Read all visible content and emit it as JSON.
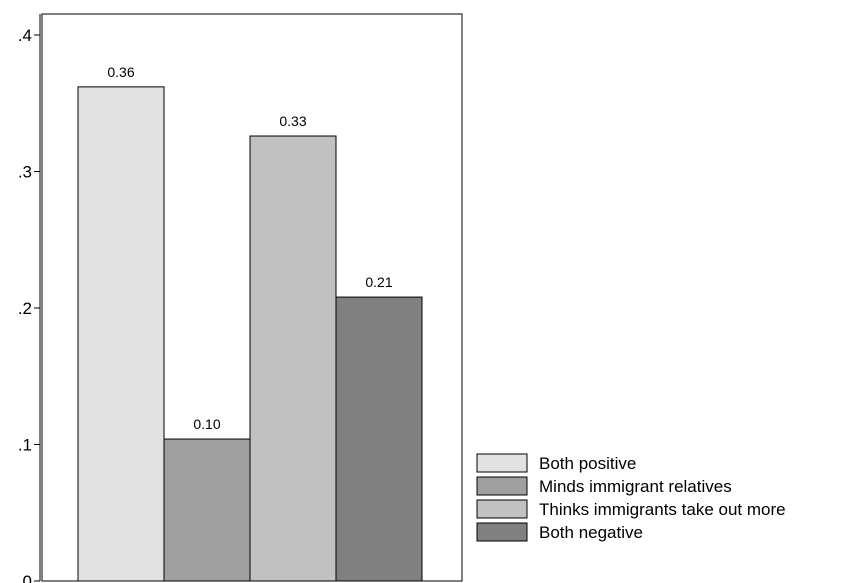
{
  "chart_data": {
    "type": "bar",
    "title": "",
    "xlabel": "",
    "ylabel": "",
    "ylim": [
      0,
      0.42
    ],
    "yticks": [
      0,
      0.1,
      0.2,
      0.3,
      0.4
    ],
    "ytick_labels": [
      "0",
      ".1",
      ".2",
      ".3",
      ".4"
    ],
    "grid": false,
    "legend_position": "bottom-right",
    "series": [
      {
        "name": "Both positive",
        "value": 0.362,
        "label": "0.36",
        "color": "#e2e2e2"
      },
      {
        "name": "Minds immigrant relatives",
        "value": 0.104,
        "label": "0.10",
        "color": "#a0a0a0"
      },
      {
        "name": "Thinks immigrants take out more",
        "value": 0.326,
        "label": "0.33",
        "color": "#c1c1c1"
      },
      {
        "name": "Both negative",
        "value": 0.208,
        "label": "0.21",
        "color": "#808080"
      }
    ]
  }
}
